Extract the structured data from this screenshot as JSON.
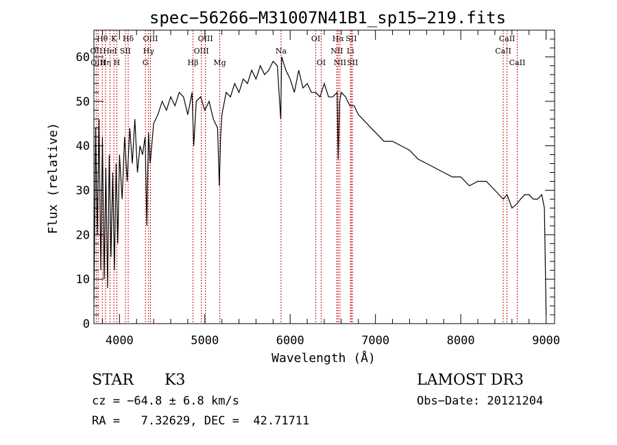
{
  "chart_data": {
    "type": "line",
    "title": "spec−56266−M31007N41B1_sp15−219.fits",
    "xlabel": "Wavelength (Å)",
    "ylabel": "Flux (relative)",
    "xlim": [
      3700,
      9100
    ],
    "ylim": [
      0,
      66
    ],
    "xticks": [
      4000,
      5000,
      6000,
      7000,
      8000,
      9000
    ],
    "yticks": [
      0,
      10,
      20,
      30,
      40,
      50,
      60
    ],
    "line_color": "#000000",
    "marker_color": "#cc0000",
    "series": [
      {
        "name": "flux",
        "x": [
          3700,
          3720,
          3740,
          3760,
          3780,
          3800,
          3820,
          3840,
          3860,
          3880,
          3900,
          3920,
          3940,
          3960,
          3980,
          4000,
          4030,
          4060,
          4090,
          4120,
          4150,
          4180,
          4210,
          4240,
          4270,
          4300,
          4320,
          4340,
          4360,
          4400,
          4450,
          4500,
          4550,
          4600,
          4650,
          4700,
          4750,
          4800,
          4850,
          4870,
          4900,
          4950,
          5000,
          5050,
          5100,
          5150,
          5170,
          5185,
          5200,
          5250,
          5300,
          5350,
          5400,
          5450,
          5500,
          5550,
          5600,
          5650,
          5700,
          5750,
          5800,
          5850,
          5890,
          5900,
          5950,
          6000,
          6050,
          6100,
          6150,
          6200,
          6250,
          6300,
          6350,
          6400,
          6450,
          6500,
          6550,
          6563,
          6580,
          6600,
          6650,
          6700,
          6750,
          6800,
          6850,
          6900,
          6950,
          7000,
          7100,
          7200,
          7300,
          7400,
          7500,
          7600,
          7700,
          7800,
          7900,
          8000,
          8100,
          8200,
          8300,
          8400,
          8498,
          8542,
          8600,
          8662,
          8700,
          8750,
          8800,
          8850,
          8900,
          8950,
          8980,
          9000
        ],
        "y": [
          5,
          44,
          20,
          46,
          12,
          42,
          10,
          35,
          8,
          38,
          15,
          34,
          12,
          36,
          18,
          38,
          28,
          42,
          32,
          44,
          36,
          46,
          34,
          40,
          38,
          42,
          22,
          43,
          36,
          45,
          47,
          50,
          48,
          51,
          49,
          52,
          51,
          47,
          52,
          40,
          50,
          51,
          48,
          50,
          46,
          44,
          31,
          42,
          47,
          52,
          51,
          54,
          52,
          55,
          54,
          57,
          55,
          58,
          56,
          57,
          59,
          58,
          46,
          60,
          57,
          55,
          52,
          57,
          53,
          54,
          52,
          52,
          51,
          54,
          51,
          51,
          52,
          37,
          50,
          52,
          51,
          49,
          49,
          47,
          46,
          45,
          44,
          43,
          41,
          41,
          40,
          39,
          37,
          36,
          35,
          34,
          33,
          33,
          31,
          32,
          32,
          30,
          28,
          29,
          26,
          27,
          28,
          29,
          29,
          28,
          28,
          29,
          26,
          2
        ]
      }
    ],
    "line_markers": [
      {
        "wavelength": 3727,
        "label": "OII",
        "row": 1
      },
      {
        "wavelength": 3750,
        "label": "OIII",
        "row": 2
      },
      {
        "wavelength": 3798,
        "label": "Hθ",
        "row": 0
      },
      {
        "wavelength": 3835,
        "label": "Hη",
        "row": 2
      },
      {
        "wavelength": 3889,
        "label": "HeI",
        "row": 1
      },
      {
        "wavelength": 3934,
        "label": "K",
        "row": 0
      },
      {
        "wavelength": 3969,
        "label": "H",
        "row": 2
      },
      {
        "wavelength": 4069,
        "label": "SII",
        "row": 1
      },
      {
        "wavelength": 4102,
        "label": "Hδ",
        "row": 0
      },
      {
        "wavelength": 4304,
        "label": "G",
        "row": 2
      },
      {
        "wavelength": 4341,
        "label": "Hγ",
        "row": 1
      },
      {
        "wavelength": 4363,
        "label": "OIII",
        "row": 0
      },
      {
        "wavelength": 4861,
        "label": "Hβ",
        "row": 2
      },
      {
        "wavelength": 4959,
        "label": "OIII",
        "row": 1
      },
      {
        "wavelength": 5007,
        "label": "OIII",
        "row": 0
      },
      {
        "wavelength": 5175,
        "label": "Mg",
        "row": 2
      },
      {
        "wavelength": 5893,
        "label": "Na",
        "row": 1
      },
      {
        "wavelength": 6300,
        "label": "OI",
        "row": 0
      },
      {
        "wavelength": 6364,
        "label": "OI",
        "row": 2
      },
      {
        "wavelength": 6548,
        "label": "NII",
        "row": 1
      },
      {
        "wavelength": 6563,
        "label": "Hα",
        "row": 0
      },
      {
        "wavelength": 6584,
        "label": "NII",
        "row": 2
      },
      {
        "wavelength": 6707,
        "label": "Li",
        "row": 1
      },
      {
        "wavelength": 6716,
        "label": "SII",
        "row": 0
      },
      {
        "wavelength": 6731,
        "label": "SII",
        "row": 2
      },
      {
        "wavelength": 8498,
        "label": "CaII",
        "row": 1
      },
      {
        "wavelength": 8542,
        "label": "CaII",
        "row": 0
      },
      {
        "wavelength": 8662,
        "label": "CaII",
        "row": 2
      }
    ]
  },
  "info": {
    "object_class": "STAR",
    "subclass": "K3",
    "survey": "LAMOST DR3",
    "redshift_line": "cz = −64.8 ± 6.8 km/s",
    "obs_date": "Obs−Date: 20121204",
    "coords": "RA =   7.32629, DEC =  42.71711"
  }
}
